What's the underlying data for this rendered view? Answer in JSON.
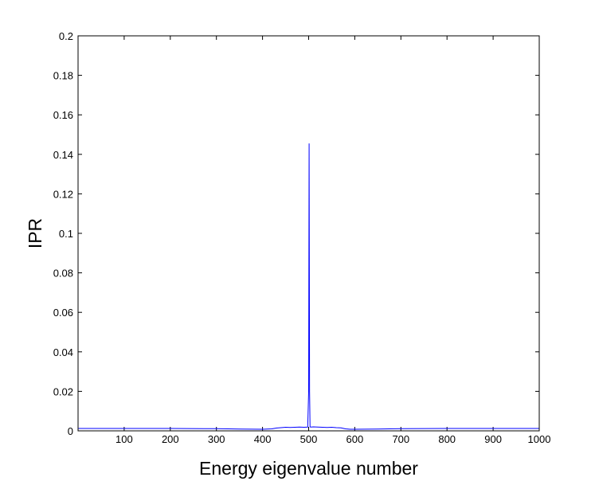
{
  "chart_data": {
    "type": "line",
    "title": "",
    "xlabel": "Energy eigenvalue number",
    "ylabel": "IPR",
    "xlim": [
      0,
      1000
    ],
    "ylim": [
      0,
      0.2
    ],
    "x_ticks": [
      100,
      200,
      300,
      400,
      500,
      600,
      700,
      800,
      900,
      1000
    ],
    "y_ticks": [
      0,
      0.02,
      0.04,
      0.06,
      0.08,
      0.1,
      0.12,
      0.14,
      0.16,
      0.18,
      0.2
    ],
    "grid": false,
    "legend": "none",
    "series": [
      {
        "color": "#0000ff",
        "x": [
          1,
          100,
          200,
          300,
          350,
          400,
          420,
          430,
          440,
          450,
          460,
          470,
          480,
          490,
          498,
          500,
          501,
          502,
          503,
          505,
          510,
          520,
          530,
          540,
          550,
          560,
          570,
          580,
          590,
          600,
          650,
          700,
          800,
          900,
          1000
        ],
        "y": [
          0.0012,
          0.0012,
          0.0012,
          0.0011,
          0.0009,
          0.0008,
          0.001,
          0.0014,
          0.0016,
          0.0018,
          0.0017,
          0.0018,
          0.0019,
          0.0018,
          0.0019,
          0.02,
          0.1455,
          0.02,
          0.002,
          0.0019,
          0.002,
          0.0019,
          0.0018,
          0.0017,
          0.0018,
          0.0016,
          0.0015,
          0.001,
          0.0008,
          0.0008,
          0.0009,
          0.0011,
          0.0012,
          0.0012,
          0.0012
        ]
      }
    ]
  }
}
